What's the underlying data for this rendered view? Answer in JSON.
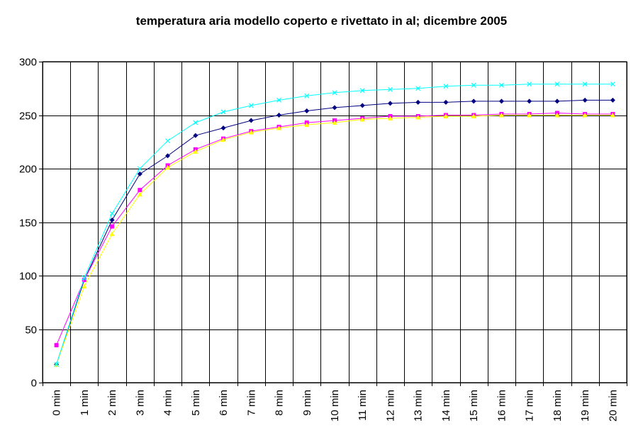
{
  "chart_data": {
    "type": "line",
    "title": "temperatura aria modello coperto e rivettato in al; dicembre 2005",
    "xlabel": "",
    "ylabel": "",
    "categories": [
      "0 min",
      "1 min",
      "2 min",
      "3 min",
      "4 min",
      "5 min",
      "6 min",
      "7 min",
      "8 min",
      "9 min",
      "10 min",
      "11 min",
      "12 min",
      "13 min",
      "14 min",
      "15 min",
      "16 min",
      "17 min",
      "18 min",
      "19 min",
      "20 min"
    ],
    "ylim": [
      0,
      300
    ],
    "yticks": [
      0,
      50,
      100,
      150,
      200,
      250,
      300
    ],
    "grid": true,
    "legend": "none",
    "series": [
      {
        "color": "#000080",
        "marker": "diamond",
        "values": [
          17,
          96,
          152,
          195,
          212,
          231,
          238,
          245,
          250,
          254,
          257,
          259,
          261,
          262,
          262,
          263,
          263,
          263,
          263,
          264,
          264
        ]
      },
      {
        "color": "#ff00ff",
        "marker": "square",
        "values": [
          35,
          96,
          146,
          180,
          203,
          218,
          228,
          235,
          239,
          243,
          245,
          247,
          249,
          249,
          250,
          250,
          251,
          251,
          252,
          251,
          251
        ]
      },
      {
        "color": "#ffff00",
        "marker": "triangle",
        "values": [
          17,
          90,
          139,
          176,
          201,
          216,
          227,
          234,
          238,
          241,
          243,
          246,
          247,
          248,
          249,
          249,
          250,
          250,
          250,
          250,
          250
        ]
      },
      {
        "color": "#00ffff",
        "marker": "x",
        "values": [
          17,
          98,
          158,
          200,
          226,
          243,
          253,
          259,
          264,
          268,
          271,
          273,
          274,
          275,
          277,
          278,
          278,
          279,
          279,
          279,
          279
        ]
      }
    ]
  }
}
